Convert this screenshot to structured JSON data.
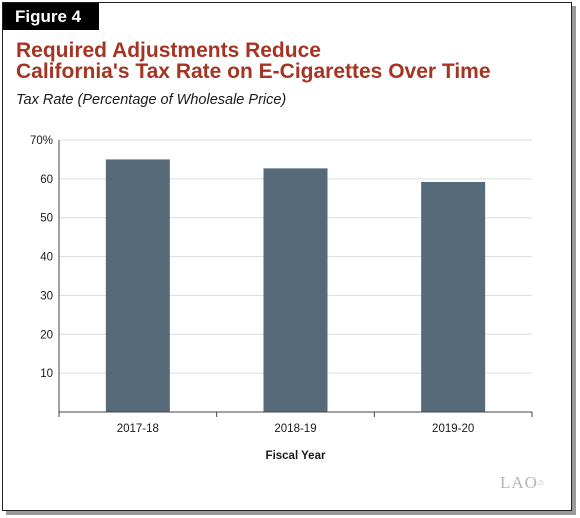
{
  "figure_label": "Figure 4",
  "title_lines": [
    "Required Adjustments Reduce",
    "California's Tax Rate on E-Cigarettes Over Time"
  ],
  "logo_text": "LAO",
  "colors": {
    "bar": "#566a7a",
    "title": "#a53423",
    "grid": "#dddddd",
    "axis": "#444444"
  },
  "chart_data": {
    "type": "bar",
    "title": "",
    "ylabel": "Tax Rate (Percentage of Wholesale Price)",
    "xlabel": "Fiscal Year",
    "categories": [
      "2017-18",
      "2018-19",
      "2019-20"
    ],
    "values": [
      65,
      62.7,
      59.2
    ],
    "ylim": [
      0,
      70
    ],
    "yticks": [
      10,
      20,
      30,
      40,
      50,
      60,
      70
    ],
    "ytick_labels": [
      "10",
      "20",
      "30",
      "40",
      "50",
      "60",
      "70%"
    ],
    "grid": true,
    "legend": "none"
  }
}
